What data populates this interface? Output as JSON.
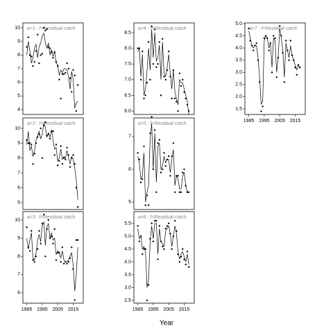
{
  "xlabel": "Year",
  "chart_data": [
    {
      "type": "line",
      "title": "a=1 : f=Residual catch",
      "x": [
        1985,
        1986,
        1987,
        1988,
        1989,
        1990,
        1991,
        1992,
        1993,
        1994,
        1995,
        1996,
        1997,
        1998,
        1999,
        2000,
        2001,
        2002,
        2003,
        2004,
        2005,
        2006,
        2007,
        2008,
        2009,
        2010,
        2011,
        2012,
        2013,
        2014,
        2015,
        2016,
        2017,
        2018
      ],
      "xlim": [
        1982.5,
        2021.5
      ],
      "ylim": [
        3.64,
        10.36
      ],
      "yticks": [
        4,
        5,
        6,
        7,
        8,
        9,
        10
      ],
      "series": [
        {
          "style": "points",
          "color": "#000000",
          "values": [
            8.6,
            9.3,
            8.0,
            7.9,
            7.2,
            7.5,
            8.3,
            9.5,
            7.4,
            8.0,
            8.1,
            10.0,
            9.8,
            9.9,
            8.6,
            8.5,
            8.2,
            7.8,
            8.2,
            7.5,
            7.2,
            6.2,
            4.8,
            6.6,
            6.6,
            6.7,
            7.4,
            7.0,
            6.3,
            5.3,
            6.9,
            6.5,
            3.9,
            5.8
          ]
        },
        {
          "style": "line",
          "color": "#000000",
          "values": [
            8.0,
            9.0,
            8.3,
            7.4,
            7.8,
            8.5,
            8.8,
            7.8,
            8.6,
            8.9,
            9.4,
            9.6,
            8.9,
            8.5,
            8.9,
            8.0,
            8.4,
            7.9,
            8.3,
            7.4,
            7.3,
            6.5,
            6.9,
            6.7,
            7.0,
            7.0,
            6.9,
            6.4,
            5.5,
            6.8,
            6.2,
            4.1,
            4.5,
            4.6
          ]
        }
      ]
    },
    {
      "type": "line",
      "title": "a=2 : f=Residual catch",
      "x": [
        1985,
        1986,
        1987,
        1988,
        1989,
        1990,
        1991,
        1992,
        1993,
        1994,
        1995,
        1996,
        1997,
        1998,
        1999,
        2000,
        2001,
        2002,
        2003,
        2004,
        2005,
        2006,
        2007,
        2008,
        2009,
        2010,
        2011,
        2012,
        2013,
        2014,
        2015,
        2016,
        2017,
        2018
      ],
      "xlim": [
        1982.5,
        2021.5
      ],
      "ylim": [
        4.53,
        10.7
      ],
      "yticks": [
        5,
        6,
        7,
        8,
        9,
        10
      ],
      "series": [
        {
          "style": "points",
          "color": "#000000",
          "values": [
            9.2,
            9.0,
            9.0,
            8.9,
            7.6,
            8.3,
            9.0,
            9.4,
            9.6,
            10.0,
            8.0,
            10.2,
            10.4,
            9.5,
            9.6,
            9.3,
            9.8,
            9.8,
            8.2,
            8.9,
            7.5,
            7.8,
            8.8,
            7.6,
            8.0,
            7.9,
            8.7,
            8.2,
            7.4,
            8.0,
            8.2,
            7.6,
            6.0,
            4.7
          ]
        },
        {
          "style": "line",
          "color": "#000000",
          "values": [
            8.9,
            9.8,
            8.5,
            8.8,
            8.1,
            8.5,
            9.2,
            9.5,
            9.8,
            9.3,
            9.6,
            10.3,
            10.1,
            9.4,
            9.7,
            9.4,
            9.9,
            9.2,
            8.6,
            8.7,
            7.8,
            8.0,
            8.6,
            7.9,
            8.1,
            8.0,
            8.5,
            8.0,
            7.6,
            8.1,
            7.9,
            7.3,
            6.5,
            5.2
          ]
        }
      ]
    },
    {
      "type": "line",
      "title": "a=3 : f=Residual catch",
      "x": [
        1985,
        1986,
        1987,
        1988,
        1989,
        1990,
        1991,
        1992,
        1993,
        1994,
        1995,
        1996,
        1997,
        1998,
        1999,
        2000,
        2001,
        2002,
        2003,
        2004,
        2005,
        2006,
        2007,
        2008,
        2009,
        2010,
        2011,
        2012,
        2013,
        2014,
        2015,
        2016,
        2017,
        2018
      ],
      "xlim": [
        1982.5,
        2021.5
      ],
      "xticks": [
        1985,
        1995,
        2005,
        2015
      ],
      "ylim": [
        5.43,
        10.46
      ],
      "yticks": [
        6,
        7,
        8,
        9,
        10
      ],
      "series": [
        {
          "style": "points",
          "color": "#000000",
          "values": [
            9.6,
            8.5,
            8.3,
            9.4,
            7.8,
            7.7,
            8.0,
            8.4,
            9.4,
            8.7,
            9.8,
            10.3,
            8.0,
            9.5,
            10.0,
            9.0,
            9.1,
            8.7,
            9.5,
            7.8,
            8.2,
            8.2,
            7.7,
            8.5,
            7.6,
            7.7,
            7.6,
            7.7,
            7.9,
            8.5,
            7.3,
            5.6,
            8.9,
            8.9
          ]
        },
        {
          "style": "line",
          "color": "#000000",
          "values": [
            9.0,
            8.4,
            8.9,
            9.3,
            7.9,
            7.8,
            8.2,
            8.9,
            9.2,
            8.8,
            9.7,
            9.9,
            8.6,
            9.6,
            9.8,
            9.0,
            9.3,
            8.9,
            9.0,
            8.1,
            8.3,
            8.2,
            7.9,
            8.3,
            7.8,
            7.7,
            7.7,
            7.8,
            8.0,
            8.2,
            7.5,
            6.1,
            7.0,
            8.5
          ]
        }
      ]
    },
    {
      "type": "line",
      "title": "a=4 : f=Residual catch",
      "x": [
        1985,
        1986,
        1987,
        1988,
        1989,
        1990,
        1991,
        1992,
        1993,
        1994,
        1995,
        1996,
        1997,
        1998,
        1999,
        2000,
        2001,
        2002,
        2003,
        2004,
        2005,
        2006,
        2007,
        2008,
        2009,
        2010,
        2011,
        2012,
        2013,
        2014,
        2015,
        2016,
        2017,
        2018
      ],
      "xlim": [
        1982.5,
        2021.5
      ],
      "ylim": [
        5.89,
        8.81
      ],
      "yticks": [
        {
          "value": 6,
          "label": "6.0"
        },
        6.5,
        {
          "value": 7,
          "label": "7.0"
        },
        7.5,
        {
          "value": 8,
          "label": "8.0"
        },
        8.5
      ],
      "series": [
        {
          "style": "points",
          "color": "#000000",
          "values": [
            8.0,
            8.0,
            7.0,
            7.9,
            6.4,
            6.5,
            6.9,
            8.2,
            7.0,
            8.7,
            7.5,
            8.6,
            7.4,
            7.5,
            8.2,
            6.5,
            8.3,
            7.1,
            7.0,
            7.3,
            7.9,
            7.1,
            6.4,
            7.3,
            6.4,
            6.3,
            6.0,
            7.2,
            6.8,
            7.0,
            6.6,
            6.4,
            6.2,
            6.0
          ]
        },
        {
          "style": "line",
          "color": "#000000",
          "values": [
            7.9,
            8.0,
            7.1,
            7.8,
            6.5,
            6.7,
            7.3,
            8.0,
            7.3,
            8.6,
            7.7,
            8.5,
            7.6,
            7.7,
            8.1,
            7.0,
            8.2,
            7.2,
            7.1,
            7.4,
            7.8,
            7.2,
            6.7,
            7.3,
            6.6,
            6.4,
            6.2,
            7.0,
            6.9,
            6.9,
            6.7,
            6.5,
            6.3,
            5.9
          ]
        }
      ]
    },
    {
      "type": "line",
      "title": "a=5 : f=Residual catch",
      "x": [
        1985,
        1986,
        1987,
        1988,
        1989,
        1990,
        1991,
        1992,
        1993,
        1994,
        1995,
        1996,
        1997,
        1998,
        1999,
        2000,
        2001,
        2002,
        2003,
        2004,
        2005,
        2006,
        2007,
        2008,
        2009,
        2010,
        2011,
        2012,
        2013,
        2014,
        2015,
        2016,
        2017,
        2018
      ],
      "xlim": [
        1982.5,
        2021.5
      ],
      "ylim": [
        4.77,
        7.57
      ],
      "yticks": [
        5,
        6,
        7
      ],
      "series": [
        {
          "style": "points",
          "color": "#000000",
          "values": [
            6.5,
            6.3,
            5.6,
            5.7,
            6.7,
            4.9,
            5.2,
            4.9,
            7.1,
            7.6,
            6.0,
            7.2,
            5.3,
            6.8,
            6.9,
            5.9,
            6.0,
            6.5,
            6.1,
            6.3,
            6.4,
            5.8,
            6.4,
            6.8,
            5.3,
            5.8,
            5.8,
            5.3,
            5.3,
            5.9,
            6.0,
            5.5,
            5.3,
            5.3
          ]
        },
        {
          "style": "line",
          "color": "#000000",
          "values": [
            6.4,
            6.2,
            5.7,
            5.8,
            6.5,
            5.0,
            5.3,
            5.5,
            6.9,
            7.4,
            6.0,
            7.1,
            5.6,
            6.7,
            6.8,
            6.0,
            6.1,
            6.4,
            6.2,
            6.3,
            6.3,
            5.9,
            6.3,
            6.6,
            5.5,
            5.8,
            5.7,
            5.4,
            5.4,
            5.8,
            5.9,
            5.5,
            5.3,
            5.3
          ]
        }
      ]
    },
    {
      "type": "line",
      "title": "a=6 : f=Residual catch",
      "x": [
        1985,
        1986,
        1987,
        1988,
        1989,
        1990,
        1991,
        1992,
        1993,
        1994,
        1995,
        1996,
        1997,
        1998,
        1999,
        2000,
        2001,
        2002,
        2003,
        2004,
        2005,
        2006,
        2007,
        2008,
        2009,
        2010,
        2011,
        2012,
        2013,
        2014,
        2015,
        2016,
        2017,
        2018
      ],
      "xlim": [
        1982.5,
        2021.5
      ],
      "xticks": [
        1985,
        1995,
        2005,
        2015
      ],
      "ylim": [
        2.39,
        5.96
      ],
      "yticks": [
        2.5,
        {
          "value": 3,
          "label": "3.0"
        },
        3.5,
        {
          "value": 4,
          "label": "4.0"
        },
        4.5,
        {
          "value": 5,
          "label": "5.0"
        },
        5.5
      ],
      "series": [
        {
          "style": "points",
          "color": "#000000",
          "values": [
            5.4,
            4.8,
            5.0,
            4.3,
            4.5,
            4.5,
            2.5,
            3.1,
            4.9,
            5.5,
            4.8,
            5.6,
            5.6,
            4.1,
            5.4,
            4.8,
            4.6,
            4.5,
            5.3,
            5.4,
            5.5,
            5.1,
            4.5,
            5.0,
            5.6,
            5.2,
            4.3,
            4.0,
            4.2,
            4.5,
            4.1,
            3.9,
            4.4,
            3.8
          ]
        },
        {
          "style": "line",
          "color": "#000000",
          "values": [
            5.3,
            4.9,
            5.0,
            4.5,
            4.6,
            4.4,
            3.0,
            3.3,
            4.8,
            5.4,
            4.9,
            5.5,
            5.5,
            4.3,
            5.3,
            4.8,
            4.7,
            4.6,
            5.2,
            5.3,
            5.4,
            5.1,
            4.6,
            5.0,
            5.4,
            5.1,
            4.4,
            4.1,
            4.3,
            4.4,
            4.2,
            4.0,
            4.3,
            3.9
          ]
        }
      ]
    },
    {
      "type": "line",
      "title": "a=7 : f=Residual catch",
      "x": [
        1985,
        1986,
        1987,
        1988,
        1989,
        1990,
        1991,
        1992,
        1993,
        1994,
        1995,
        1996,
        1997,
        1998,
        1999,
        2000,
        2001,
        2002,
        2003,
        2004,
        2005,
        2006,
        2007,
        2008,
        2009,
        2010,
        2011,
        2012,
        2013,
        2014,
        2015,
        2016,
        2017,
        2018
      ],
      "xlim": [
        1982.5,
        2021.5
      ],
      "xticks": [
        1985,
        1995,
        2005,
        2015
      ],
      "ylim": [
        1.27,
        5.03
      ],
      "yticks": [
        1.5,
        {
          "value": 2,
          "label": "2.0"
        },
        2.5,
        {
          "value": 3,
          "label": "3.0"
        },
        3.5,
        {
          "value": 4,
          "label": "4.0"
        },
        4.5,
        {
          "value": 5,
          "label": "5.0"
        }
      ],
      "series": [
        {
          "style": "points",
          "color": "#000000",
          "values": [
            4.8,
            4.3,
            4.1,
            3.9,
            4.1,
            4.2,
            3.5,
            2.6,
            1.4,
            1.6,
            4.4,
            4.5,
            4.4,
            3.9,
            4.2,
            3.0,
            4.5,
            4.4,
            2.8,
            3.6,
            4.9,
            4.5,
            3.8,
            2.6,
            4.3,
            3.9,
            3.5,
            4.3,
            3.7,
            3.5,
            3.2,
            2.9,
            3.3,
            3.2
          ]
        },
        {
          "style": "line",
          "color": "#000000",
          "values": [
            4.7,
            4.4,
            4.1,
            4.0,
            4.1,
            4.1,
            3.6,
            2.8,
            1.7,
            1.8,
            4.3,
            4.5,
            4.4,
            4.0,
            4.2,
            3.2,
            4.4,
            4.3,
            3.0,
            3.6,
            4.8,
            4.4,
            3.9,
            2.8,
            4.2,
            3.9,
            3.6,
            4.1,
            3.7,
            3.5,
            3.3,
            3.1,
            3.3,
            3.2
          ]
        }
      ]
    }
  ]
}
